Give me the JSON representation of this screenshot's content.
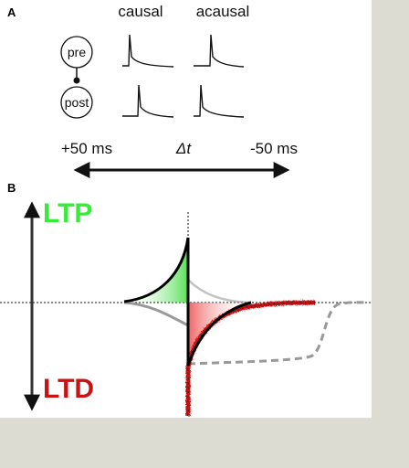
{
  "panel_a": {
    "letter": "A",
    "columns": [
      "causal",
      "acausal"
    ],
    "neurons": {
      "pre": "pre",
      "post": "post"
    },
    "axis": {
      "left": "+50 ms",
      "middle": "Δt",
      "right": "-50 ms"
    }
  },
  "panel_b": {
    "letter": "B",
    "top_label": "LTP",
    "bottom_label": "LTD"
  },
  "colors": {
    "ltp": "#33ee33",
    "ltd": "#cc1111",
    "ltp_fill": "#55dd55",
    "ltd_fill": "#ee6666",
    "background": "#dcdcd2"
  }
}
